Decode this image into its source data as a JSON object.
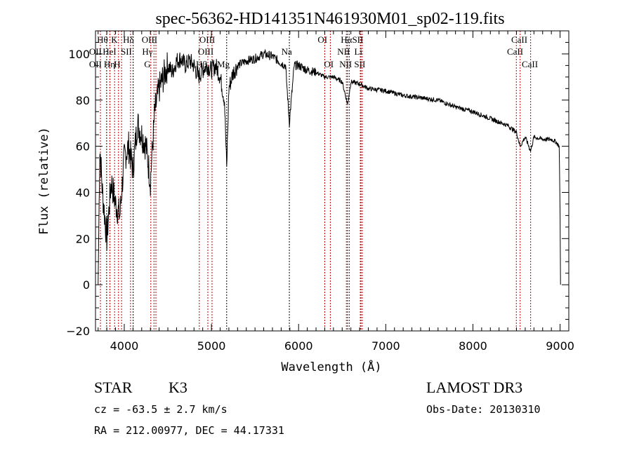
{
  "chart_data": {
    "type": "line",
    "title": "spec-56362-HD141351N461930M01_sp02-119.fits",
    "xlabel": "Wavelength (Å)",
    "ylabel": "Flux (relative)",
    "xlim": [
      3670,
      9100
    ],
    "ylim": [
      -20,
      110
    ],
    "xticks": [
      4000,
      5000,
      6000,
      7000,
      8000,
      9000
    ],
    "yticks": [
      -20,
      0,
      20,
      40,
      60,
      80,
      100
    ],
    "grid": false,
    "series": [
      {
        "name": "flux",
        "x": [
          3700,
          3720,
          3750,
          3800,
          3850,
          3900,
          3950,
          4000,
          4050,
          4100,
          4150,
          4200,
          4250,
          4300,
          4350,
          4400,
          4450,
          4500,
          4550,
          4600,
          4650,
          4700,
          4750,
          4800,
          4850,
          4900,
          4950,
          5000,
          5050,
          5100,
          5150,
          5175,
          5200,
          5250,
          5300,
          5400,
          5500,
          5600,
          5700,
          5800,
          5850,
          5894,
          5950,
          6000,
          6100,
          6200,
          6300,
          6400,
          6500,
          6563,
          6600,
          6700,
          6800,
          7000,
          7200,
          7400,
          7600,
          7800,
          8000,
          8200,
          8400,
          8500,
          8542,
          8600,
          8662,
          8700,
          8800,
          8900,
          8950,
          8990,
          9000,
          9005
        ],
        "y": [
          0,
          60,
          40,
          20,
          45,
          35,
          30,
          55,
          60,
          50,
          70,
          65,
          60,
          45,
          75,
          85,
          90,
          95,
          92,
          97,
          98,
          95,
          97,
          95,
          90,
          93,
          95,
          93,
          95,
          90,
          80,
          50,
          85,
          92,
          95,
          97,
          98,
          100,
          99,
          96,
          95,
          70,
          95,
          95,
          93,
          92,
          90,
          90,
          88,
          78,
          88,
          87,
          85,
          84,
          82,
          81,
          80,
          77,
          75,
          72,
          69,
          66,
          60,
          64,
          58,
          64,
          63,
          63,
          62,
          60,
          30,
          0
        ]
      }
    ],
    "lines": [
      {
        "name": "OII",
        "wave": 3727,
        "color": "#c00000"
      },
      {
        "name": "Hθ",
        "wave": 3798,
        "color": "#000000"
      },
      {
        "name": "Hη",
        "wave": 3835,
        "color": "#c00000"
      },
      {
        "name": "HeI",
        "wave": 3889,
        "color": "#c00000"
      },
      {
        "name": "K",
        "wave": 3934,
        "color": "#c00000"
      },
      {
        "name": "H",
        "wave": 3969,
        "color": "#c00000"
      },
      {
        "name": "SII",
        "wave": 4072,
        "color": "#c00000"
      },
      {
        "name": "Hδ",
        "wave": 4102,
        "color": "#000000"
      },
      {
        "name": "G",
        "wave": 4305,
        "color": "#c00000"
      },
      {
        "name": "Hγ",
        "wave": 4341,
        "color": "#c00000"
      },
      {
        "name": "OIII",
        "wave": 4363,
        "color": "#c00000"
      },
      {
        "name": "Hβ",
        "wave": 4861,
        "color": "#c00000"
      },
      {
        "name": "OIII",
        "wave": 4959,
        "color": "#c00000"
      },
      {
        "name": "OIII",
        "wave": 5007,
        "color": "#c00000"
      },
      {
        "name": "Mg",
        "wave": 5175,
        "color": "#000000"
      },
      {
        "name": "Na",
        "wave": 5894,
        "color": "#000000"
      },
      {
        "name": "OI",
        "wave": 6300,
        "color": "#c00000"
      },
      {
        "name": "OI",
        "wave": 6364,
        "color": "#c00000"
      },
      {
        "name": "NII",
        "wave": 6548,
        "color": "#c00000"
      },
      {
        "name": "Hα",
        "wave": 6563,
        "color": "#000000"
      },
      {
        "name": "NII",
        "wave": 6583,
        "color": "#c00000"
      },
      {
        "name": "Li",
        "wave": 6708,
        "color": "#c00000"
      },
      {
        "name": "SII",
        "wave": 6716,
        "color": "#c00000"
      },
      {
        "name": "SII",
        "wave": 6731,
        "color": "#c00000"
      },
      {
        "name": "CaII",
        "wave": 8498,
        "color": "#c00000"
      },
      {
        "name": "CaII",
        "wave": 8542,
        "color": "#c00000"
      },
      {
        "name": "CaII",
        "wave": 8662,
        "color": "#c00000"
      }
    ],
    "line_labels": [
      {
        "text": "Hθ",
        "wave": 3750,
        "row": 1
      },
      {
        "text": "K",
        "wave": 3887,
        "row": 1
      },
      {
        "text": "Hδ",
        "wave": 4048,
        "row": 1
      },
      {
        "text": "OIII",
        "wave": 4290,
        "row": 1
      },
      {
        "text": "OIII",
        "wave": 4952,
        "row": 1
      },
      {
        "text": "OI",
        "wave": 6274,
        "row": 1
      },
      {
        "text": "HαSII",
        "wave": 6613,
        "row": 1
      },
      {
        "text": "CaII",
        "wave": 8532,
        "row": 1
      },
      {
        "text": "OII",
        "wave": 3669,
        "row": 2
      },
      {
        "text": "HeI",
        "wave": 3831,
        "row": 2
      },
      {
        "text": "SII",
        "wave": 4024,
        "row": 2
      },
      {
        "text": "Hγ",
        "wave": 4266,
        "row": 2
      },
      {
        "text": "OIII",
        "wave": 4935,
        "row": 2
      },
      {
        "text": "Na",
        "wave": 5863,
        "row": 2
      },
      {
        "text": "NII",
        "wave": 6516,
        "row": 2
      },
      {
        "text": "Li",
        "wave": 6685,
        "row": 2
      },
      {
        "text": "CaII",
        "wave": 8484,
        "row": 2
      },
      {
        "text": "OII",
        "wave": 3669,
        "row": 3
      },
      {
        "text": "Hη",
        "wave": 3831,
        "row": 3
      },
      {
        "text": "H",
        "wave": 3919,
        "row": 3
      },
      {
        "text": "G",
        "wave": 4266,
        "row": 3
      },
      {
        "text": "Hβ",
        "wave": 4887,
        "row": 3
      },
      {
        "text": "Mg",
        "wave": 5137,
        "row": 3
      },
      {
        "text": "OI",
        "wave": 6347,
        "row": 3
      },
      {
        "text": "NII",
        "wave": 6540,
        "row": 3
      },
      {
        "text": "SII",
        "wave": 6702,
        "row": 3
      },
      {
        "text": "CaII",
        "wave": 8653,
        "row": 3
      }
    ]
  },
  "info": {
    "object_class": "STAR",
    "subclass": "K3",
    "cz": "cz = -63.5 ± 2.7 km/s",
    "coords": "RA = 212.00977, DEC =  44.17331",
    "survey": "LAMOST DR3",
    "obs_date": "Obs-Date: 20130310"
  }
}
